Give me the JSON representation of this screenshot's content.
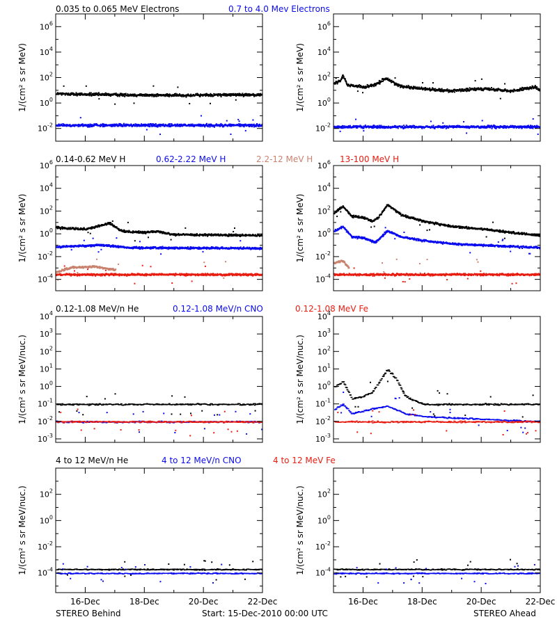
{
  "colors": {
    "black": "#000000",
    "blue": "#0a0af0",
    "tan": "#c8826e",
    "red": "#e81c10"
  },
  "headers": [
    [
      {
        "text": "0.035 to 0.065 MeV Electrons",
        "color": "black"
      },
      {
        "text": "0.7 to 4.0 Mev Electrons",
        "color": "blue"
      }
    ],
    [
      {
        "text": "0.14-0.62 MeV H",
        "color": "black"
      },
      {
        "text": "0.62-2.22 MeV H",
        "color": "blue"
      },
      {
        "text": "2.2-12 MeV H",
        "color": "tan"
      },
      {
        "text": "13-100 MeV H",
        "color": "red"
      }
    ],
    [
      {
        "text": "0.12-1.08 MeV/n He",
        "color": "black"
      },
      {
        "text": "0.12-1.08 MeV/n CNO",
        "color": "blue"
      },
      {
        "text": "0.12-1.08 MeV Fe",
        "color": "red"
      }
    ],
    [
      {
        "text": "4 to 12 MeV/n He",
        "color": "black"
      },
      {
        "text": "4 to 12 MeV/n CNO",
        "color": "blue"
      },
      {
        "text": "4 to 12 MeV Fe",
        "color": "red"
      }
    ]
  ],
  "ylabel_mev": "1/(cm² s sr MeV)",
  "ylabel_nuc": "1/(cm² s sr MeV/nuc.)",
  "x_tick_labels": [
    "16-Dec",
    "18-Dec",
    "20-Dec",
    "22-Dec"
  ],
  "footer": {
    "left": "STEREO Behind",
    "center": "Start: 15-Dec-2010 00:00 UTC",
    "right": "STEREO Ahead"
  },
  "chart_data": [
    {
      "type": "scatter",
      "spacecraft": "STEREO Behind",
      "row": 0,
      "x_range_days": [
        15,
        22
      ],
      "y_scale": "log",
      "ylim_exp": [
        -3,
        7
      ],
      "ytick_exps": [
        -2,
        0,
        2,
        4,
        6
      ],
      "series": [
        {
          "name": "0.035 to 0.065 MeV Electrons",
          "color": "black",
          "profile": [
            [
              15.0,
              6
            ],
            [
              17.0,
              5
            ],
            [
              19.0,
              4.5
            ],
            [
              21.0,
              5
            ],
            [
              22.0,
              5
            ]
          ]
        },
        {
          "name": "0.7 to 4.0 Mev Electrons",
          "color": "blue",
          "profile": [
            [
              15.0,
              0.02
            ],
            [
              22.0,
              0.02
            ]
          ]
        }
      ]
    },
    {
      "type": "scatter",
      "spacecraft": "STEREO Ahead",
      "row": 0,
      "x_range_days": [
        15,
        22
      ],
      "y_scale": "log",
      "ylim_exp": [
        -3,
        7
      ],
      "ytick_exps": [
        -2,
        0,
        2,
        4,
        6
      ],
      "series": [
        {
          "name": "0.035 to 0.065 MeV Electrons",
          "color": "black",
          "profile": [
            [
              15.0,
              40
            ],
            [
              15.2,
              60
            ],
            [
              15.3,
              160
            ],
            [
              15.45,
              30
            ],
            [
              16.0,
              20
            ],
            [
              16.4,
              30
            ],
            [
              16.75,
              100
            ],
            [
              17.2,
              25
            ],
            [
              18.0,
              15
            ],
            [
              19.0,
              10
            ],
            [
              20.0,
              15
            ],
            [
              20.5,
              12
            ],
            [
              21.0,
              10
            ],
            [
              21.8,
              20
            ],
            [
              22.0,
              10
            ]
          ]
        },
        {
          "name": "0.7 to 4.0 Mev Electrons",
          "color": "blue",
          "profile": [
            [
              15.0,
              0.015
            ],
            [
              22.0,
              0.015
            ]
          ]
        }
      ]
    },
    {
      "type": "scatter",
      "spacecraft": "STEREO Behind",
      "row": 1,
      "x_range_days": [
        15,
        22
      ],
      "y_scale": "log",
      "ylim_exp": [
        -5,
        6
      ],
      "ytick_exps": [
        -4,
        -2,
        0,
        2,
        4,
        6
      ],
      "series": [
        {
          "name": "0.14-0.62 MeV H",
          "color": "black",
          "profile": [
            [
              15.0,
              4
            ],
            [
              16.0,
              3
            ],
            [
              16.5,
              6
            ],
            [
              16.8,
              10
            ],
            [
              17.2,
              2
            ],
            [
              18.0,
              1.5
            ],
            [
              18.3,
              2
            ],
            [
              19.0,
              1
            ],
            [
              22.0,
              0.8
            ]
          ]
        },
        {
          "name": "0.62-2.22 MeV H",
          "color": "blue",
          "profile": [
            [
              15.0,
              0.08
            ],
            [
              16.5,
              0.12
            ],
            [
              17.5,
              0.07
            ],
            [
              22.0,
              0.06
            ]
          ]
        },
        {
          "name": "2.2-12 MeV H",
          "color": "tan",
          "profile": [
            [
              15.0,
              0.0005
            ],
            [
              15.5,
              0.0012
            ],
            [
              16.3,
              0.0015
            ],
            [
              17.0,
              0.0008
            ]
          ]
        },
        {
          "name": "13-100 MeV H",
          "color": "red",
          "profile": [
            [
              15.0,
              0.0003
            ],
            [
              22.0,
              0.0003
            ]
          ]
        }
      ]
    },
    {
      "type": "scatter",
      "spacecraft": "STEREO Ahead",
      "row": 1,
      "x_range_days": [
        15,
        22
      ],
      "y_scale": "log",
      "ylim_exp": [
        -5,
        6
      ],
      "ytick_exps": [
        -4,
        -2,
        0,
        2,
        4,
        6
      ],
      "series": [
        {
          "name": "0.14-0.62 MeV H",
          "color": "black",
          "profile": [
            [
              15.0,
              80
            ],
            [
              15.3,
              300
            ],
            [
              15.6,
              40
            ],
            [
              16.0,
              30
            ],
            [
              16.3,
              15
            ],
            [
              16.5,
              30
            ],
            [
              16.8,
              400
            ],
            [
              17.3,
              50
            ],
            [
              18.0,
              15
            ],
            [
              19.0,
              5
            ],
            [
              20.0,
              3
            ],
            [
              21.0,
              1.5
            ],
            [
              22.0,
              0.8
            ]
          ]
        },
        {
          "name": "0.62-2.22 MeV H",
          "color": "blue",
          "profile": [
            [
              15.0,
              2
            ],
            [
              15.3,
              5
            ],
            [
              15.6,
              0.6
            ],
            [
              16.0,
              0.5
            ],
            [
              16.4,
              0.2
            ],
            [
              16.8,
              2
            ],
            [
              17.3,
              0.6
            ],
            [
              18.0,
              0.3
            ],
            [
              19.0,
              0.15
            ],
            [
              22.0,
              0.07
            ]
          ]
        },
        {
          "name": "2.2-12 MeV H",
          "color": "tan",
          "profile": [
            [
              15.0,
              0.003
            ],
            [
              15.3,
              0.005
            ],
            [
              15.5,
              0.0012
            ]
          ]
        },
        {
          "name": "13-100 MeV H",
          "color": "red",
          "profile": [
            [
              15.0,
              0.0003
            ],
            [
              22.0,
              0.0003
            ]
          ]
        }
      ]
    },
    {
      "type": "scatter",
      "spacecraft": "STEREO Behind",
      "row": 2,
      "x_range_days": [
        15,
        22
      ],
      "y_scale": "log",
      "ylim_exp": [
        -3.2,
        4
      ],
      "ytick_exps": [
        -3,
        -2,
        -1,
        0,
        1,
        2,
        3,
        4
      ],
      "series": [
        {
          "name": "0.12-1.08 MeV/n He",
          "color": "black",
          "profile": [
            [
              15.0,
              0.1
            ],
            [
              22.0,
              0.1
            ]
          ]
        },
        {
          "name": "0.12-1.08 MeV/n CNO",
          "color": "blue",
          "profile": [
            [
              15.0,
              0.01
            ],
            [
              22.0,
              0.01
            ]
          ]
        },
        {
          "name": "0.12-1.08 MeV Fe",
          "color": "red",
          "profile": [
            [
              15.0,
              0.01
            ],
            [
              22.0,
              0.01
            ]
          ]
        }
      ]
    },
    {
      "type": "scatter",
      "spacecraft": "STEREO Ahead",
      "row": 2,
      "x_range_days": [
        15,
        22
      ],
      "y_scale": "log",
      "ylim_exp": [
        -3.2,
        4
      ],
      "ytick_exps": [
        -3,
        -2,
        -1,
        0,
        1,
        2,
        3,
        4
      ],
      "series": [
        {
          "name": "0.12-1.08 MeV/n He",
          "color": "black",
          "profile": [
            [
              15.0,
              1
            ],
            [
              15.3,
              2
            ],
            [
              15.6,
              0.2
            ],
            [
              16.0,
              0.3
            ],
            [
              16.3,
              0.5
            ],
            [
              16.6,
              3
            ],
            [
              16.8,
              10
            ],
            [
              17.1,
              3
            ],
            [
              17.4,
              0.3
            ],
            [
              18.0,
              0.1
            ],
            [
              22.0,
              0.1
            ]
          ]
        },
        {
          "name": "0.12-1.08 MeV/n CNO",
          "color": "blue",
          "profile": [
            [
              15.0,
              0.05
            ],
            [
              15.3,
              0.1
            ],
            [
              15.6,
              0.03
            ],
            [
              16.8,
              0.08
            ],
            [
              17.4,
              0.03
            ],
            [
              18.0,
              0.02
            ],
            [
              22.0,
              0.01
            ]
          ]
        },
        {
          "name": "0.12-1.08 MeV Fe",
          "color": "red",
          "profile": [
            [
              15.0,
              0.01
            ],
            [
              22.0,
              0.01
            ]
          ]
        }
      ]
    },
    {
      "type": "scatter",
      "spacecraft": "STEREO Behind",
      "row": 3,
      "x_range_days": [
        15,
        22
      ],
      "y_scale": "log",
      "ylim_exp": [
        -5.5,
        4
      ],
      "ytick_exps": [
        -4,
        -2,
        0,
        2
      ],
      "series": [
        {
          "name": "4 to 12 MeV/n He",
          "color": "black",
          "profile": [
            [
              15.0,
              0.0002
            ],
            [
              22.0,
              0.0002
            ]
          ]
        },
        {
          "name": "4 to 12 MeV/n CNO",
          "color": "blue",
          "profile": [
            [
              15.0,
              0.0001
            ],
            [
              22.0,
              0.0001
            ]
          ]
        },
        {
          "name": "4 to 12 MeV Fe",
          "color": "red",
          "profile": []
        }
      ]
    },
    {
      "type": "scatter",
      "spacecraft": "STEREO Ahead",
      "row": 3,
      "x_range_days": [
        15,
        22
      ],
      "y_scale": "log",
      "ylim_exp": [
        -5.5,
        4
      ],
      "ytick_exps": [
        -4,
        -2,
        0,
        2
      ],
      "series": [
        {
          "name": "4 to 12 MeV/n He",
          "color": "black",
          "profile": [
            [
              15.0,
              0.0002
            ],
            [
              22.0,
              0.0002
            ]
          ]
        },
        {
          "name": "4 to 12 MeV/n CNO",
          "color": "blue",
          "profile": [
            [
              15.0,
              0.0001
            ],
            [
              22.0,
              0.0001
            ]
          ]
        },
        {
          "name": "4 to 12 MeV Fe",
          "color": "red",
          "profile": []
        }
      ]
    }
  ]
}
